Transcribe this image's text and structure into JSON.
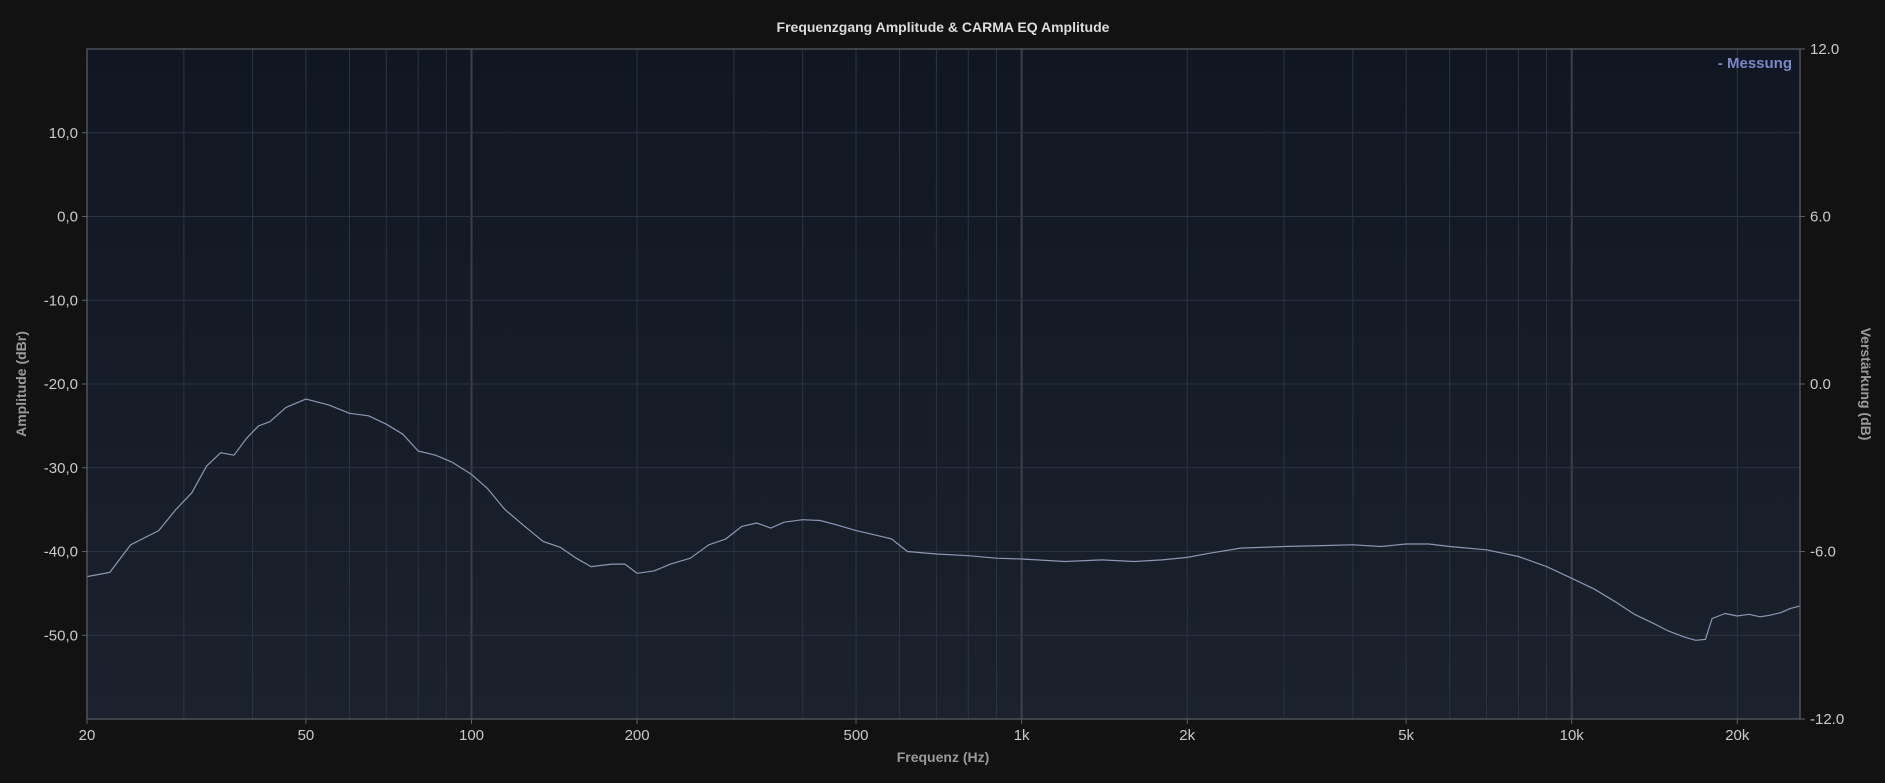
{
  "chart_data": {
    "type": "line",
    "title": "Frequenzgang Amplitude & CARMA EQ Amplitude",
    "xlabel": "Frequenz (Hz)",
    "ylabel": "Amplitude (dBr)",
    "ylabel_right": "Verstärkung (dB)",
    "x_scale": "log",
    "xlim": [
      20,
      26000
    ],
    "ylim": [
      -60,
      20
    ],
    "ylim_right": [
      -12,
      12
    ],
    "x_ticks": [
      {
        "value": 20,
        "label": "20"
      },
      {
        "value": 50,
        "label": "50"
      },
      {
        "value": 100,
        "label": "100"
      },
      {
        "value": 200,
        "label": "200"
      },
      {
        "value": 500,
        "label": "500"
      },
      {
        "value": 1000,
        "label": "1k"
      },
      {
        "value": 2000,
        "label": "2k"
      },
      {
        "value": 5000,
        "label": "5k"
      },
      {
        "value": 10000,
        "label": "10k"
      },
      {
        "value": 20000,
        "label": "20k"
      }
    ],
    "y_ticks": [
      {
        "value": 10,
        "label": "10,0"
      },
      {
        "value": 0,
        "label": "0,0"
      },
      {
        "value": -10,
        "label": "-10,0"
      },
      {
        "value": -20,
        "label": "-20,0"
      },
      {
        "value": -30,
        "label": "-30,0"
      },
      {
        "value": -40,
        "label": "-40,0"
      },
      {
        "value": -50,
        "label": "-50,0"
      }
    ],
    "y_right_ticks": [
      {
        "value": 12,
        "label": "12.0"
      },
      {
        "value": 6,
        "label": "6.0"
      },
      {
        "value": 0,
        "label": "0.0"
      },
      {
        "value": -6,
        "label": "-6.0"
      },
      {
        "value": -12,
        "label": "-12.0"
      }
    ],
    "grid": true,
    "legend": {
      "position": "top-right",
      "entries": [
        "- Messung"
      ]
    },
    "colors": {
      "background": "#121212",
      "plot_bg_top": "#111722",
      "plot_bg_bottom": "#1b212d",
      "grid": "#2c3342",
      "grid_major": "#3a3f49",
      "border": "#5a5f66",
      "series": "#8d96b4",
      "legend": "#7b86c8"
    },
    "series": [
      {
        "name": "Messung",
        "x": [
          20,
          22,
          24,
          27,
          29,
          31,
          33,
          35,
          37,
          39,
          41,
          43,
          46,
          50,
          55,
          60,
          65,
          70,
          75,
          80,
          86,
          92,
          100,
          107,
          115,
          125,
          135,
          145,
          155,
          165,
          180,
          190,
          200,
          215,
          230,
          250,
          270,
          290,
          310,
          330,
          350,
          370,
          400,
          430,
          460,
          500,
          540,
          580,
          620,
          700,
          800,
          900,
          1000,
          1200,
          1400,
          1600,
          1800,
          2000,
          2200,
          2500,
          3000,
          3500,
          4000,
          4500,
          5000,
          5500,
          6000,
          7000,
          8000,
          9000,
          10000,
          11000,
          12000,
          13000,
          14000,
          15000,
          16000,
          16800,
          17500,
          18000,
          19000,
          20000,
          21000,
          22000,
          23000,
          24000,
          25000,
          26000
        ],
        "values": [
          -43.0,
          -42.5,
          -39.2,
          -37.5,
          -35.0,
          -33.0,
          -29.8,
          -28.2,
          -28.5,
          -26.5,
          -25.0,
          -24.5,
          -22.8,
          -21.8,
          -22.5,
          -23.5,
          -23.8,
          -24.8,
          -26.0,
          -28.0,
          -28.5,
          -29.3,
          -30.8,
          -32.5,
          -35.0,
          -37.0,
          -38.8,
          -39.5,
          -40.8,
          -41.8,
          -41.5,
          -41.5,
          -42.6,
          -42.3,
          -41.5,
          -40.8,
          -39.2,
          -38.5,
          -37.0,
          -36.6,
          -37.2,
          -36.5,
          -36.2,
          -36.3,
          -36.8,
          -37.5,
          -38.0,
          -38.5,
          -40.0,
          -40.3,
          -40.5,
          -40.8,
          -40.9,
          -41.2,
          -41.0,
          -41.2,
          -41.0,
          -40.7,
          -40.2,
          -39.6,
          -39.4,
          -39.3,
          -39.2,
          -39.4,
          -39.1,
          -39.1,
          -39.4,
          -39.8,
          -40.6,
          -41.8,
          -43.2,
          -44.5,
          -46.0,
          -47.5,
          -48.5,
          -49.5,
          -50.2,
          -50.6,
          -50.5,
          -48.0,
          -47.4,
          -47.7,
          -47.5,
          -47.8,
          -47.6,
          -47.3,
          -46.8,
          -46.5
        ]
      }
    ]
  }
}
